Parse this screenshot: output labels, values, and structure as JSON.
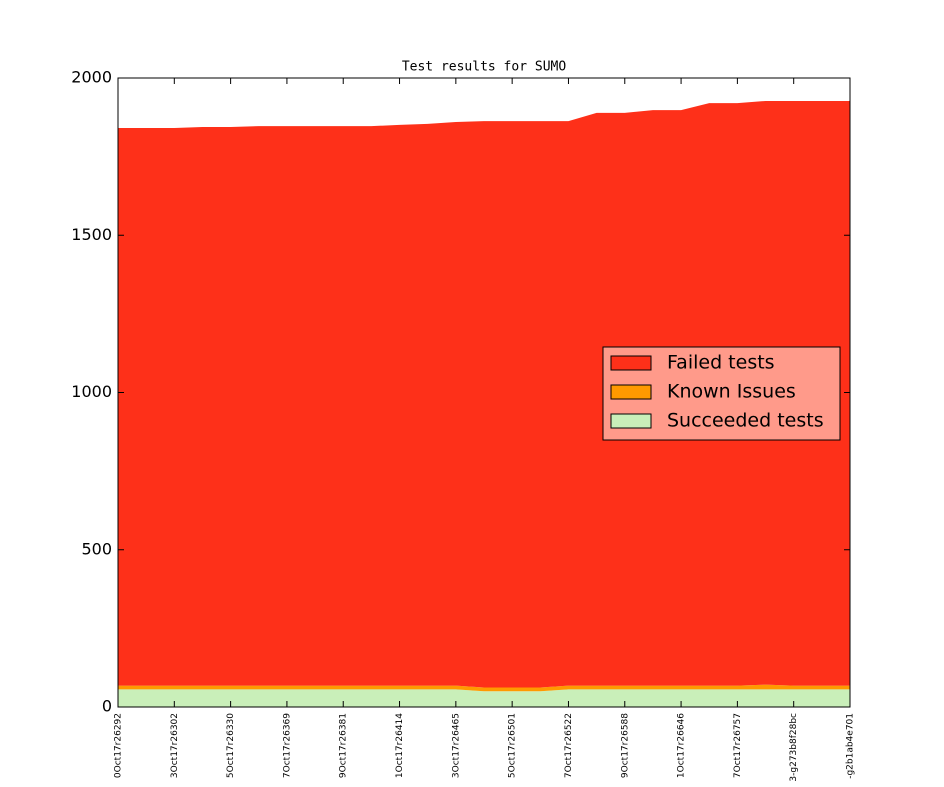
{
  "chart_data": {
    "type": "stacked-area",
    "title": "Test results for SUMO",
    "categories": [
      "0Oct17r26292",
      null,
      "3Oct17r26302",
      null,
      "5Oct17r26330",
      null,
      "7Oct17r26369",
      null,
      "9Oct17r26381",
      null,
      "1Oct17r26414",
      null,
      "3Oct17r26465",
      null,
      "5Oct17r26501",
      null,
      "7Oct17r26522",
      null,
      "9Oct17r26588",
      null,
      "1Oct17r26646",
      null,
      "7Oct17r26757",
      null,
      "3-g273b8f28bc",
      null,
      "-g2b1ab4e701"
    ],
    "series": [
      {
        "name": "Succeeded tests",
        "color": "#c9efb9",
        "values": [
          56,
          56,
          56,
          56,
          56,
          56,
          56,
          56,
          56,
          56,
          56,
          56,
          56,
          50,
          50,
          50,
          56,
          56,
          56,
          56,
          56,
          56,
          56,
          56,
          56,
          56,
          56
        ]
      },
      {
        "name": "Known Issues",
        "color": "#ff9900",
        "values": [
          12,
          12,
          12,
          12,
          12,
          12,
          12,
          12,
          12,
          12,
          12,
          12,
          12,
          12,
          12,
          12,
          12,
          12,
          12,
          12,
          12,
          12,
          12,
          15,
          12,
          12,
          12
        ]
      },
      {
        "name": "Failed tests",
        "color": "#fe3019",
        "values": [
          1773,
          1773,
          1773,
          1776,
          1776,
          1779,
          1779,
          1779,
          1779,
          1779,
          1783,
          1786,
          1792,
          1801,
          1801,
          1801,
          1795,
          1821,
          1821,
          1830,
          1830,
          1852,
          1852,
          1856,
          1859,
          1859,
          1859
        ]
      }
    ],
    "ylim": [
      0,
      2000
    ],
    "yticks": [
      0,
      500,
      1000,
      1500,
      2000
    ],
    "legend": "right"
  }
}
